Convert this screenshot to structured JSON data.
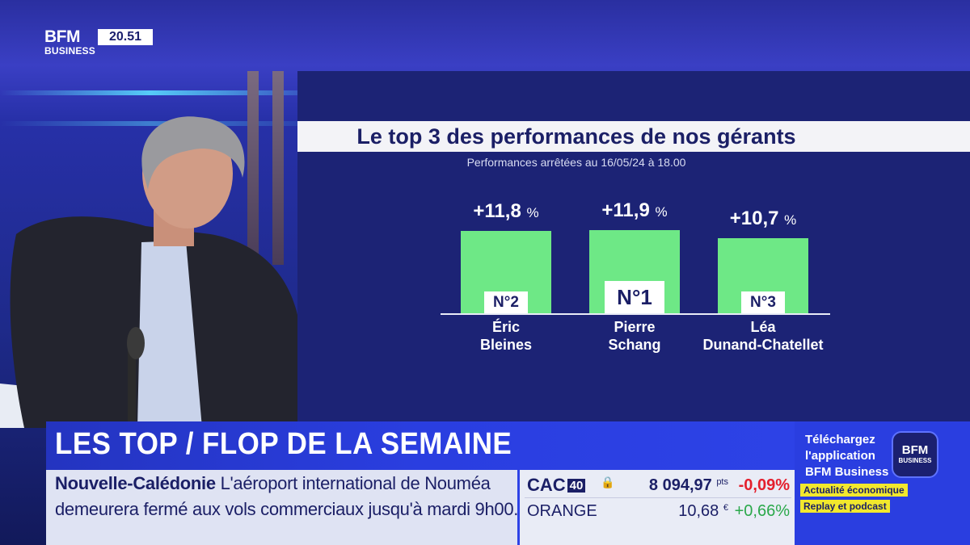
{
  "channel": {
    "logo_top": "BFM",
    "logo_bottom": "BUSINESS",
    "clock": "20.51"
  },
  "graphic": {
    "title": "Le top 3 des performances de nos gérants",
    "subtitle": "Performances arrêtées au 16/05/24 à 18.00",
    "colors": {
      "bar": "#6ee886",
      "panel": "#1c2375"
    },
    "entries": [
      {
        "value": "+11,8",
        "unit": "%",
        "rank": "N°2",
        "name_line1": "Éric",
        "name_line2": "Bleines",
        "performance_pct": 11.8
      },
      {
        "value": "+11,9",
        "unit": "%",
        "rank": "N°1",
        "name_line1": "Pierre",
        "name_line2": "Schang",
        "performance_pct": 11.9
      },
      {
        "value": "+10,7",
        "unit": "%",
        "rank": "N°3",
        "name_line1": "Léa",
        "name_line2": "Dunand-Chatellet",
        "performance_pct": 10.7
      }
    ]
  },
  "lower_third": {
    "title": "LES TOP / FLOP DE LA SEMAINE",
    "ticker_place": "Nouvelle-Calédonie",
    "ticker_text1": "L'aéroport international de Nouméa",
    "ticker_text2": "demeurera fermé aux vols commerciaux jusqu'à mardi 9h00."
  },
  "market": {
    "index_name": "CAC",
    "index_num": "40",
    "lock_icon": "lock-icon",
    "index_value": "8 094,97",
    "index_unit": "pts",
    "index_change": "-0,09%",
    "stock_name": "ORANGE",
    "stock_value": "10,68",
    "stock_unit": "€",
    "stock_change": "+0,66%",
    "colors": {
      "down": "#e41f2d",
      "up": "#2aa84a"
    }
  },
  "promo": {
    "line1": "Téléchargez",
    "line2": "l'application",
    "line3": "BFM Business",
    "app_top": "BFM",
    "app_bottom": "BUSINESS",
    "tag1": "Actualité économique",
    "tag2": "Replay et podcast"
  }
}
